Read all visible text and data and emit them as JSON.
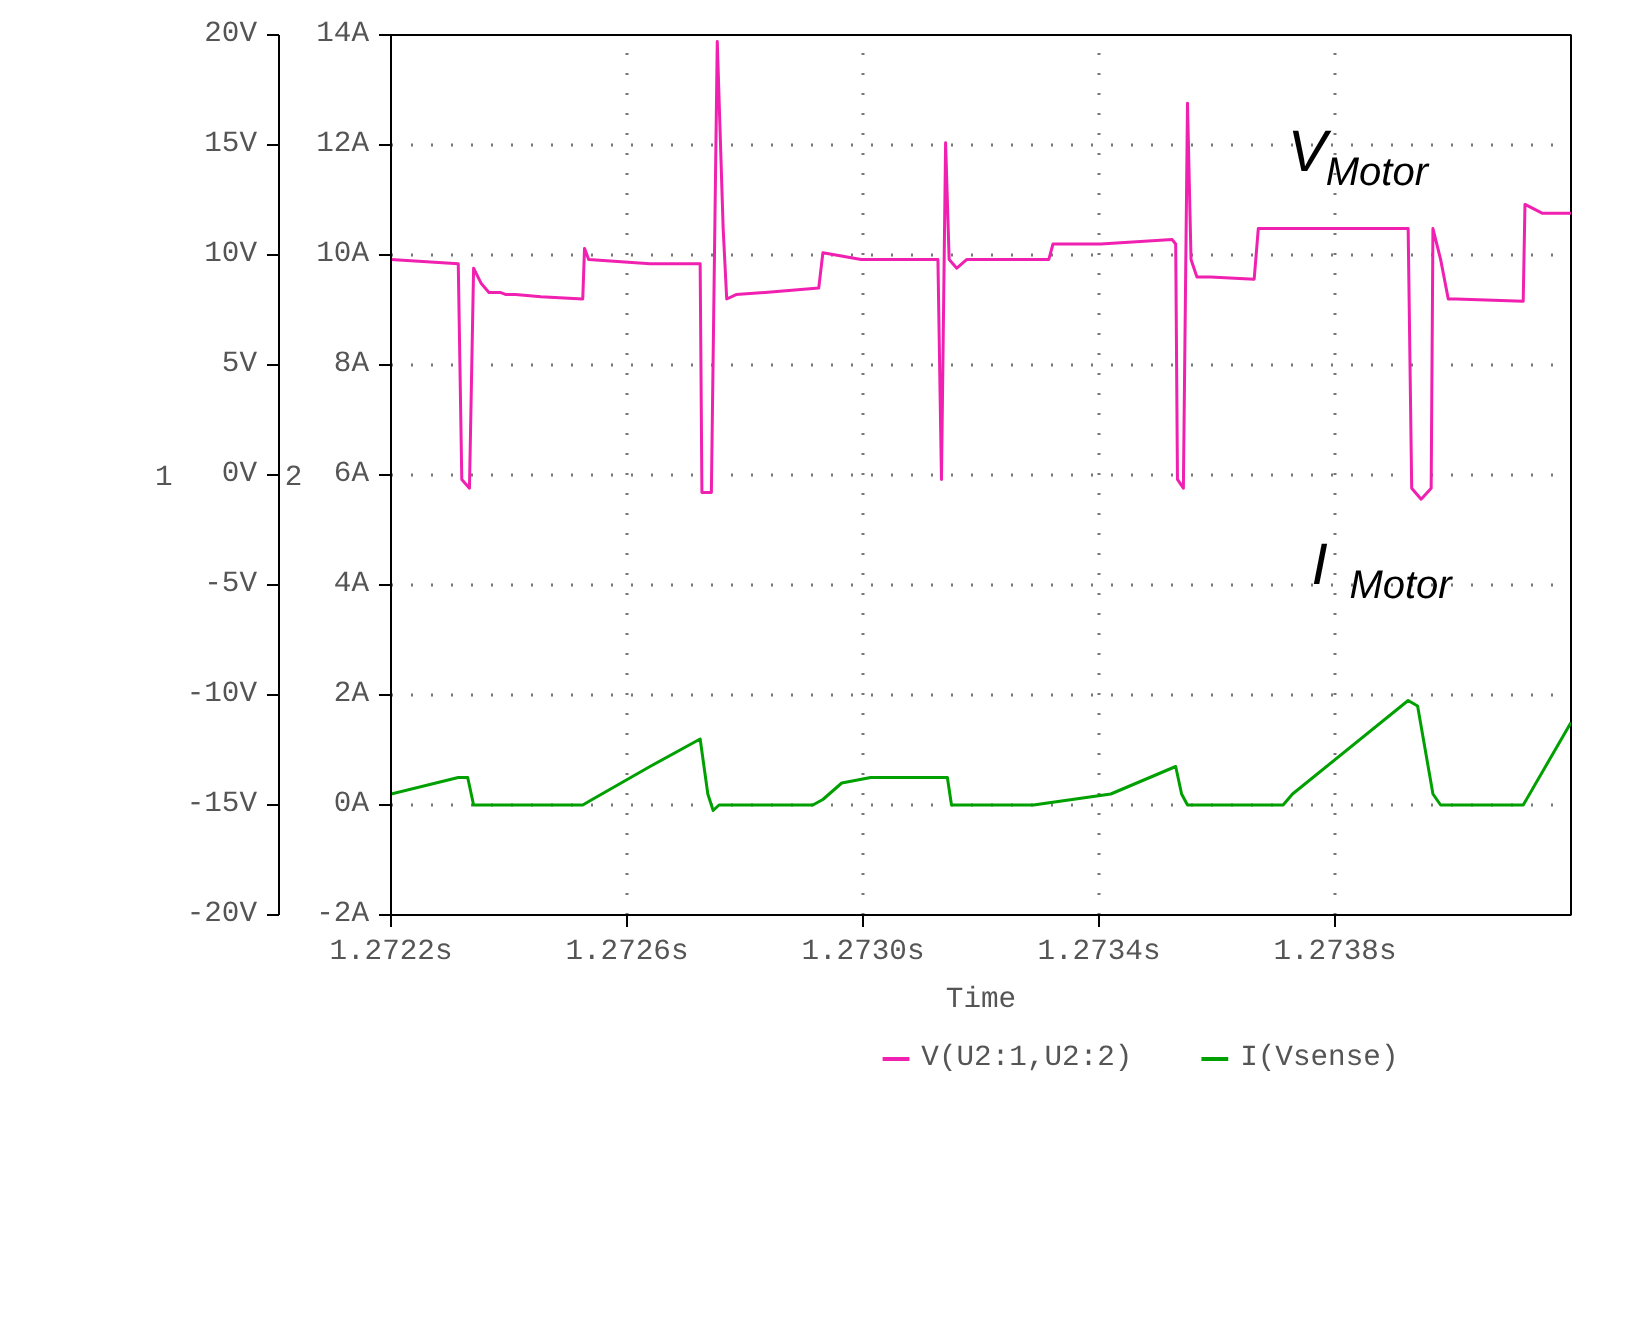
{
  "chart_data": {
    "type": "line",
    "xlabel": "Time",
    "ylabel": "1",
    "y2label": "2",
    "xlim": [
      1.2722,
      1.2742
    ],
    "xticks": [
      {
        "value": 1.2722,
        "label": "1.2722s"
      },
      {
        "value": 1.2726,
        "label": "1.2726s"
      },
      {
        "value": 1.273,
        "label": "1.2730s"
      },
      {
        "value": 1.2734,
        "label": "1.2734s"
      },
      {
        "value": 1.2738,
        "label": "1.2738s"
      }
    ],
    "ylim": [
      -20,
      20
    ],
    "yticks": [
      {
        "value": -20,
        "label": "-20V"
      },
      {
        "value": -15,
        "label": "-15V"
      },
      {
        "value": -10,
        "label": "-10V"
      },
      {
        "value": -5,
        "label": "-5V"
      },
      {
        "value": 0,
        "label": "0V"
      },
      {
        "value": 5,
        "label": "5V"
      },
      {
        "value": 10,
        "label": "10V"
      },
      {
        "value": 15,
        "label": "15V"
      },
      {
        "value": 20,
        "label": "20V"
      }
    ],
    "y2lim": [
      -2,
      14
    ],
    "y2ticks": [
      {
        "value": -2,
        "label": "-2A"
      },
      {
        "value": 0,
        "label": "0A"
      },
      {
        "value": 2,
        "label": "2A"
      },
      {
        "value": 4,
        "label": "4A"
      },
      {
        "value": 6,
        "label": "6A"
      },
      {
        "value": 8,
        "label": "8A"
      },
      {
        "value": 10,
        "label": "10A"
      },
      {
        "value": 12,
        "label": "12A"
      },
      {
        "value": 14,
        "label": "14A"
      }
    ],
    "grid": true,
    "legend": "bottom",
    "line_style": "solid",
    "annotations": [
      "V$_{Motor}$",
      "I$_{Motor}$"
    ],
    "series": [
      {
        "name": "V(U2:1,U2:2)",
        "color": "#f020b0",
        "x": [
          1.2722,
          1.272314,
          1.27232,
          1.272333,
          1.27234,
          1.272353,
          1.272366,
          1.272385,
          1.272395,
          1.272411,
          1.272454,
          1.272525,
          1.272528,
          1.272535,
          1.272639,
          1.272724,
          1.272727,
          1.272743,
          1.272753,
          1.272763,
          1.272769,
          1.272785,
          1.272834,
          1.272925,
          1.272932,
          1.272997,
          1.273127,
          1.273133,
          1.27314,
          1.273146,
          1.273159,
          1.273176,
          1.273315,
          1.273322,
          1.273403,
          1.273524,
          1.27353,
          1.273533,
          1.273543,
          1.27355,
          1.273556,
          1.273566,
          1.273589,
          1.273663,
          1.27367,
          1.273728,
          1.273924,
          1.27393,
          1.273946,
          1.273963,
          1.273966,
          1.273979,
          1.273992,
          1.274005,
          1.274119,
          1.274122,
          1.274151,
          1.2742
        ],
        "values": [
          9.8,
          9.6,
          -0.2,
          -0.6,
          9.4,
          8.7,
          8.3,
          8.3,
          8.2,
          8.2,
          8.1,
          8.0,
          10.3,
          9.8,
          9.6,
          9.6,
          -0.8,
          -0.8,
          19.7,
          11.2,
          8.0,
          8.2,
          8.3,
          8.5,
          10.1,
          9.8,
          9.8,
          -0.2,
          15.1,
          9.8,
          9.4,
          9.8,
          9.8,
          10.5,
          10.5,
          10.7,
          10.5,
          -0.2,
          -0.6,
          16.9,
          9.8,
          9.0,
          9.0,
          8.9,
          11.2,
          11.2,
          11.2,
          -0.6,
          -1.1,
          -0.6,
          11.2,
          9.8,
          8.0,
          8.0,
          7.9,
          12.3,
          11.9,
          11.9
        ]
      },
      {
        "name": "I(Vsense)",
        "color": "#00a000",
        "axis": "y2",
        "x": [
          1.2722,
          1.272314,
          1.27233,
          1.27234,
          1.272525,
          1.272541,
          1.272639,
          1.272724,
          1.272737,
          1.272746,
          1.272756,
          1.272915,
          1.272932,
          1.272964,
          1.273013,
          1.273143,
          1.27315,
          1.273289,
          1.27342,
          1.27353,
          1.27354,
          1.27355,
          1.273712,
          1.273728,
          1.273924,
          1.27394,
          1.273966,
          1.273979,
          1.274119,
          1.2742
        ],
        "values": [
          0.2,
          0.5,
          0.5,
          0.0,
          0.0,
          0.1,
          0.7,
          1.2,
          0.2,
          -0.1,
          0.0,
          0.0,
          0.1,
          0.4,
          0.5,
          0.5,
          0.0,
          0.0,
          0.2,
          0.7,
          0.2,
          0.0,
          0.0,
          0.2,
          1.9,
          1.8,
          0.2,
          0.0,
          0.0,
          1.5
        ]
      }
    ]
  }
}
